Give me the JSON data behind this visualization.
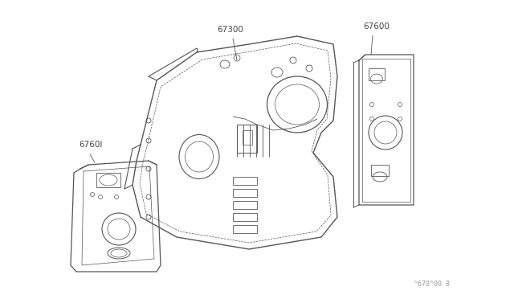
{
  "background_color": "#ffffff",
  "line_color": "#555555",
  "label_color": "#444444",
  "diagram_number": "^670^00 8",
  "figsize": [
    6.4,
    3.72
  ],
  "dpi": 100
}
